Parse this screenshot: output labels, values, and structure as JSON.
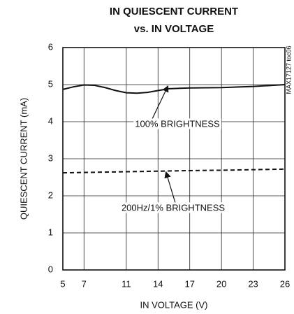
{
  "chart_data": {
    "type": "line",
    "title": [
      "IN QUIESCENT CURRENT",
      "vs. IN VOLTAGE"
    ],
    "x_label": "IN VOLTAGE (V)",
    "y_label": "QUIESCENT CURRENT (mA)",
    "side_note": "MAX17127 toc06",
    "x": [
      5,
      6,
      7,
      8,
      9,
      10,
      11,
      12,
      13,
      14,
      15,
      17,
      20,
      23,
      26
    ],
    "series": [
      {
        "name": "100% BRIGHTNESS",
        "color": "#111111",
        "dash": false,
        "values": [
          4.87,
          4.94,
          4.99,
          4.98,
          4.92,
          4.84,
          4.78,
          4.77,
          4.79,
          4.84,
          4.89,
          4.91,
          4.92,
          4.95,
          5.0
        ]
      },
      {
        "name": "200Hz/1% BRIGHTNESS",
        "color": "#111111",
        "dash": true,
        "values": [
          2.62,
          2.625,
          2.63,
          2.635,
          2.64,
          2.645,
          2.65,
          2.655,
          2.66,
          2.665,
          2.67,
          2.68,
          2.69,
          2.705,
          2.72
        ]
      }
    ],
    "xlim": [
      5,
      26
    ],
    "xticks": [
      5,
      7,
      11,
      14,
      17,
      20,
      23,
      26
    ],
    "ylim": [
      0,
      6
    ],
    "yticks": [
      0,
      1,
      2,
      3,
      4,
      5,
      6
    ],
    "grid": true
  }
}
